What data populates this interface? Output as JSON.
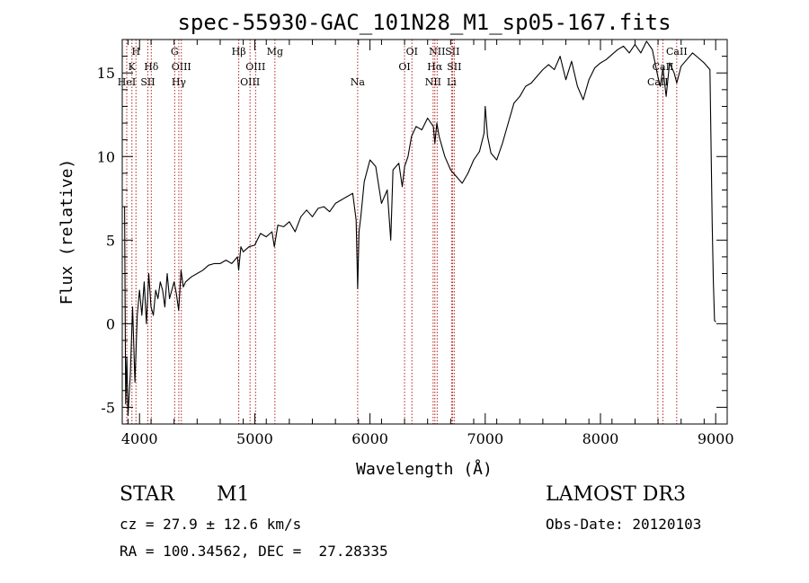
{
  "chart_data": {
    "type": "line",
    "title": "spec-55930-GAC_101N28_M1_sp05-167.fits",
    "xlabel": "Wavelength (Å)",
    "ylabel": "Flux (relative)",
    "xlim": [
      3850,
      9100
    ],
    "ylim": [
      -6.0,
      17.0
    ],
    "x_ticks": [
      4000,
      5000,
      6000,
      7000,
      8000,
      9000
    ],
    "y_ticks": [
      -5,
      0,
      5,
      10,
      15
    ],
    "grid": false,
    "series": [
      {
        "name": "flux",
        "x": [
          3870,
          3880,
          3890,
          3900,
          3920,
          3940,
          3960,
          3980,
          4000,
          4020,
          4040,
          4060,
          4080,
          4100,
          4120,
          4140,
          4160,
          4180,
          4200,
          4220,
          4240,
          4260,
          4280,
          4300,
          4320,
          4340,
          4360,
          4380,
          4400,
          4450,
          4500,
          4550,
          4600,
          4650,
          4700,
          4750,
          4800,
          4850,
          4860,
          4880,
          4900,
          4950,
          5000,
          5050,
          5100,
          5150,
          5170,
          5200,
          5250,
          5300,
          5350,
          5400,
          5450,
          5500,
          5550,
          5600,
          5650,
          5700,
          5750,
          5800,
          5850,
          5880,
          5893,
          5905,
          5920,
          5950,
          6000,
          6050,
          6100,
          6150,
          6180,
          6200,
          6250,
          6280,
          6300,
          6330,
          6360,
          6400,
          6450,
          6500,
          6550,
          6563,
          6580,
          6600,
          6650,
          6700,
          6750,
          6800,
          6850,
          6900,
          6950,
          6990,
          7000,
          7020,
          7050,
          7100,
          7150,
          7200,
          7250,
          7300,
          7350,
          7400,
          7450,
          7500,
          7550,
          7600,
          7650,
          7700,
          7750,
          7800,
          7850,
          7900,
          7950,
          8000,
          8050,
          8100,
          8150,
          8200,
          8250,
          8300,
          8350,
          8400,
          8450,
          8498,
          8520,
          8542,
          8570,
          8600,
          8640,
          8662,
          8700,
          8750,
          8800,
          8850,
          8900,
          8950,
          8970,
          8980,
          8990,
          9000
        ],
        "y": [
          7.0,
          -4.8,
          -2.0,
          -5.5,
          -3.0,
          1.0,
          -3.5,
          0.5,
          2.0,
          0.5,
          2.5,
          0.0,
          3.0,
          1.0,
          0.5,
          2.0,
          1.5,
          2.5,
          2.0,
          1.0,
          3.0,
          1.5,
          2.0,
          2.5,
          1.8,
          0.8,
          3.2,
          2.2,
          2.5,
          2.8,
          3.0,
          3.2,
          3.5,
          3.6,
          3.6,
          3.8,
          3.6,
          4.0,
          3.2,
          4.6,
          4.3,
          4.6,
          4.7,
          5.4,
          5.2,
          5.5,
          4.6,
          5.9,
          5.8,
          6.1,
          5.5,
          6.4,
          6.8,
          6.4,
          6.9,
          7.0,
          6.7,
          7.2,
          7.4,
          7.6,
          7.8,
          6.2,
          2.1,
          5.5,
          6.4,
          8.5,
          9.8,
          9.4,
          7.2,
          8.0,
          5.0,
          9.2,
          9.6,
          8.2,
          9.4,
          10.0,
          11.2,
          11.8,
          11.6,
          12.3,
          11.8,
          10.8,
          12.0,
          11.2,
          10.0,
          9.2,
          8.8,
          8.4,
          9.0,
          9.8,
          10.3,
          11.4,
          13.0,
          11.2,
          10.2,
          9.8,
          10.8,
          12.0,
          13.2,
          13.6,
          14.2,
          14.4,
          14.8,
          15.2,
          15.5,
          15.2,
          16.0,
          14.6,
          15.7,
          14.2,
          13.4,
          14.6,
          15.3,
          15.6,
          15.8,
          16.1,
          16.4,
          16.6,
          16.2,
          16.7,
          16.2,
          16.9,
          16.4,
          14.8,
          14.2,
          15.3,
          13.6,
          15.6,
          15.0,
          14.4,
          15.4,
          15.8,
          16.2,
          15.9,
          15.6,
          15.2,
          6.0,
          2.5,
          0.2,
          0.1
        ]
      }
    ],
    "lines": [
      {
        "label": "H",
        "x": 3969,
        "row": 0
      },
      {
        "label": "K",
        "x": 3934,
        "row": 1
      },
      {
        "label": "HeI",
        "x": 3889,
        "row": 2
      },
      {
        "label": "Hδ",
        "x": 4102,
        "row": 1
      },
      {
        "label": "SII",
        "x": 4072,
        "row": 2
      },
      {
        "label": "G",
        "x": 4305,
        "row": 0
      },
      {
        "label": "OIII",
        "x": 4363,
        "row": 1
      },
      {
        "label": "Hγ",
        "x": 4341,
        "row": 2
      },
      {
        "label": "Hβ",
        "x": 4861,
        "row": 0
      },
      {
        "label": "OIII",
        "x": 5007,
        "row": 1
      },
      {
        "label": "OIII",
        "x": 4959,
        "row": 2
      },
      {
        "label": "Mg",
        "x": 5175,
        "row": 0
      },
      {
        "label": "Na",
        "x": 5893,
        "row": 2
      },
      {
        "label": "OI",
        "x": 6364,
        "row": 0
      },
      {
        "label": "OI",
        "x": 6300,
        "row": 1
      },
      {
        "label": "NII",
        "x": 6583,
        "row": 0
      },
      {
        "label": "SII",
        "x": 6716,
        "row": 0
      },
      {
        "label": "Hα",
        "x": 6563,
        "row": 1
      },
      {
        "label": "SII",
        "x": 6731,
        "row": 1
      },
      {
        "label": "NII",
        "x": 6548,
        "row": 2
      },
      {
        "label": "Li",
        "x": 6708,
        "row": 2
      },
      {
        "label": "CaII",
        "x": 8662,
        "row": 0
      },
      {
        "label": "CaII",
        "x": 8542,
        "row": 1
      },
      {
        "label": "CaII",
        "x": 8498,
        "row": 2
      }
    ]
  },
  "footer": {
    "object_class": "STAR",
    "subclass": "M1",
    "survey": "LAMOST DR3",
    "cz": "cz = 27.9 ± 12.6 km/s",
    "obs_date": "Obs-Date: 20120103",
    "coords": "RA = 100.34562, DEC =  27.28335"
  },
  "colors": {
    "axis": "#000000",
    "flux": "#000000",
    "line_marker": "#b22222"
  }
}
